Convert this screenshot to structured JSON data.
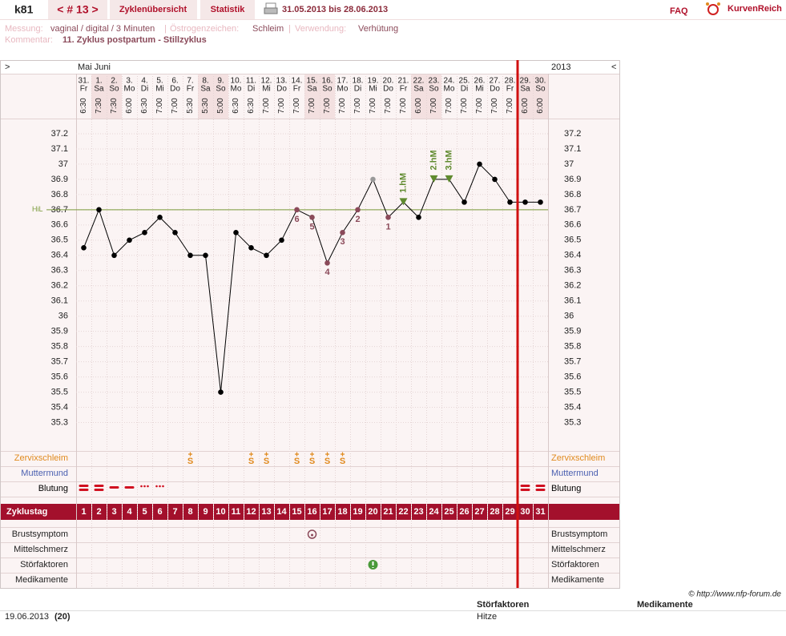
{
  "header": {
    "user": "k81",
    "cycle": "< # 13 >",
    "tabs": [
      "Zyklenübersicht",
      "Statistik"
    ],
    "range": "31.05.2013 bis 28.06.2013",
    "faq": "FAQ",
    "brand": "KurvenReich"
  },
  "info": {
    "separator": "|",
    "messung_label": "Messung:",
    "messung": "vaginal / digital / 3 Minuten",
    "oestrogen_label": "Östrogenzeichen:",
    "oestrogen": "Schleim",
    "verwendung_label": "Verwendung:",
    "verwendung": "Verhütung",
    "kommentar_label": "Kommentar:",
    "kommentar": "11. Zyklus postpartum - Stillzyklus"
  },
  "chart_data": {
    "type": "line",
    "nav_left": ">",
    "nav_right": "<",
    "months": "Mai Juni",
    "year": "2013",
    "categories": [
      "31.",
      "1.",
      "2.",
      "3.",
      "4.",
      "5.",
      "6.",
      "7.",
      "8.",
      "9.",
      "10.",
      "11.",
      "12.",
      "13.",
      "14.",
      "15.",
      "16.",
      "17.",
      "18.",
      "19.",
      "20.",
      "21.",
      "22.",
      "23.",
      "24.",
      "25.",
      "26.",
      "27.",
      "28.",
      "29.",
      "30."
    ],
    "weekdays": [
      "Fr",
      "Sa",
      "So",
      "Mo",
      "Di",
      "Mi",
      "Do",
      "Fr",
      "Sa",
      "So",
      "Mo",
      "Di",
      "Mi",
      "Do",
      "Fr",
      "Sa",
      "So",
      "Mo",
      "Di",
      "Mi",
      "Do",
      "Fr",
      "Sa",
      "So",
      "Mo",
      "Di",
      "Mi",
      "Do",
      "Fr",
      "Sa",
      "So"
    ],
    "times": [
      "6:30",
      "7:30",
      "7:30",
      "6:00",
      "6:30",
      "7:00",
      "7:00",
      "5:30",
      "5:30",
      "5:00",
      "6:30",
      "6:30",
      "7:00",
      "7:00",
      "7:00",
      "7:00",
      "7:00",
      "7:00",
      "7:00",
      "7:00",
      "7:00",
      "7:00",
      "6:00",
      "7:00",
      "7:00",
      "7:00",
      "7:00",
      "7:00",
      "7:00",
      "6:00",
      "6:00"
    ],
    "values": [
      36.45,
      36.7,
      36.4,
      36.5,
      36.55,
      36.65,
      36.55,
      36.4,
      36.4,
      35.5,
      36.55,
      36.45,
      36.4,
      36.5,
      36.7,
      36.65,
      36.35,
      36.55,
      36.7,
      36.9,
      36.65,
      36.75,
      36.65,
      36.9,
      36.9,
      36.75,
      37.0,
      36.9,
      36.75,
      36.75,
      36.75
    ],
    "point_labels": [
      null,
      null,
      null,
      null,
      null,
      null,
      null,
      null,
      null,
      null,
      null,
      null,
      null,
      null,
      "6",
      "5",
      "4",
      "3",
      "2",
      null,
      "1",
      "1.hM",
      null,
      "2.hM",
      "3.hM",
      null,
      null,
      null,
      null,
      null,
      null
    ],
    "point_colors": [
      "#000000",
      "#000000",
      "#000000",
      "#000000",
      "#000000",
      "#000000",
      "#000000",
      "#000000",
      "#000000",
      "#000000",
      "#000000",
      "#000000",
      "#000000",
      "#000000",
      "#8b4a5a",
      "#8b4a5a",
      "#8b4a5a",
      "#8b4a5a",
      "#8b4a5a",
      "#999999",
      "#8b4a5a",
      "#5f8a2e",
      "#000000",
      "#5f8a2e",
      "#5f8a2e",
      "#000000",
      "#000000",
      "#000000",
      "#000000",
      "#000000",
      "#000000"
    ],
    "color": "#000000",
    "ylim": [
      35.15,
      37.3
    ],
    "yticks": [
      35.3,
      35.4,
      35.5,
      35.6,
      35.7,
      35.8,
      35.9,
      36,
      36.1,
      36.2,
      36.3,
      36.4,
      36.5,
      36.6,
      36.7,
      36.8,
      36.9,
      37,
      37.1,
      37.2
    ],
    "grid": true,
    "hline": {
      "value": 36.7,
      "label": "HiL",
      "color": "#7a9a3a"
    },
    "rows_top": [
      {
        "label": "Zervixschleim",
        "color": "#e08a1e",
        "marks": [
          null,
          null,
          null,
          null,
          null,
          null,
          null,
          "S",
          null,
          null,
          null,
          "S",
          "S",
          null,
          "S",
          "S",
          "S",
          "S",
          null,
          null,
          null,
          null,
          null,
          null,
          null,
          null,
          null,
          null,
          null,
          null,
          null
        ]
      },
      {
        "label": "Muttermund",
        "color": "#4a5fb0"
      },
      {
        "label": "Blutung",
        "color": "#000000"
      }
    ],
    "zyklustag": {
      "label": "Zyklustag",
      "days": [
        1,
        2,
        3,
        4,
        5,
        6,
        7,
        8,
        9,
        10,
        11,
        12,
        13,
        14,
        15,
        16,
        17,
        18,
        19,
        20,
        21,
        22,
        23,
        24,
        25,
        26,
        27,
        28,
        29,
        30,
        31
      ]
    },
    "rows_bottom": [
      "Brustsymptom",
      "Mittelschmerz",
      "Störfaktoren",
      "Medikamente"
    ]
  },
  "footer": {
    "copyright": "© http://www.nfp-forum.de",
    "columns": [
      "Störfaktoren",
      "Medikamente"
    ],
    "rows": [
      [
        "19.06.2013",
        "(20)",
        "Hitze"
      ]
    ]
  }
}
